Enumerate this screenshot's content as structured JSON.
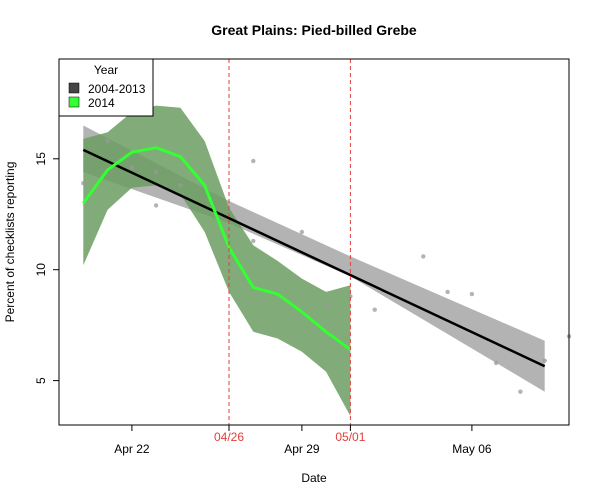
{
  "chart_data": {
    "type": "line",
    "title": "Great Plains: Pied-billed Grebe",
    "xlabel": "Date",
    "ylabel": "Percent of checklists reporting",
    "xlim": [
      "2014-04-19",
      "2014-05-10"
    ],
    "ylim": [
      3,
      19.5
    ],
    "x_ticks": [
      {
        "date": "2014-04-22",
        "label": "Apr 22"
      },
      {
        "date": "2014-04-29",
        "label": "Apr 29"
      },
      {
        "date": "2014-05-06",
        "label": "May 06"
      }
    ],
    "y_ticks": [
      5,
      10,
      15
    ],
    "reference_lines": [
      {
        "date": "2014-04-26",
        "label": "04/26",
        "color": "#e0403a"
      },
      {
        "date": "2014-05-01",
        "label": "05/01",
        "color": "#e0403a"
      }
    ],
    "legend": {
      "title": "Year",
      "placement": "top-left",
      "entries": [
        {
          "label": "2004-2013",
          "color": "#444444"
        },
        {
          "label": "2014",
          "color": "#33ff33"
        }
      ]
    },
    "series": [
      {
        "name": "2004-2013",
        "color": "#000000",
        "band_color": "#b3b3b3",
        "line": [
          {
            "x": "2014-04-20",
            "y": 15.4
          },
          {
            "x": "2014-05-09",
            "y": 5.65
          }
        ],
        "band": [
          {
            "x": "2014-04-20",
            "lower": 14.4,
            "upper": 16.5
          },
          {
            "x": "2014-04-26",
            "lower": 12.1,
            "upper": 13.1
          },
          {
            "x": "2014-05-01",
            "lower": 9.7,
            "upper": 10.6
          },
          {
            "x": "2014-05-09",
            "lower": 4.5,
            "upper": 6.8
          }
        ]
      },
      {
        "name": "2014",
        "color": "#33ff33",
        "band_color": "#6b9e62",
        "line": [
          {
            "x": "2014-04-20",
            "y": 13.0
          },
          {
            "x": "2014-04-21",
            "y": 14.5
          },
          {
            "x": "2014-04-22",
            "y": 15.3
          },
          {
            "x": "2014-04-23",
            "y": 15.5
          },
          {
            "x": "2014-04-24",
            "y": 15.1
          },
          {
            "x": "2014-04-25",
            "y": 13.8
          },
          {
            "x": "2014-04-26",
            "y": 11.0
          },
          {
            "x": "2014-04-27",
            "y": 9.2
          },
          {
            "x": "2014-04-28",
            "y": 8.9
          },
          {
            "x": "2014-04-29",
            "y": 8.1
          },
          {
            "x": "2014-04-30",
            "y": 7.2
          },
          {
            "x": "2014-05-01",
            "y": 6.4
          }
        ],
        "band": [
          {
            "x": "2014-04-20",
            "lower": 10.2,
            "upper": 15.9
          },
          {
            "x": "2014-04-21",
            "lower": 12.7,
            "upper": 16.2
          },
          {
            "x": "2014-04-22",
            "lower": 13.7,
            "upper": 17.1
          },
          {
            "x": "2014-04-23",
            "lower": 13.8,
            "upper": 17.4
          },
          {
            "x": "2014-04-24",
            "lower": 13.4,
            "upper": 17.3
          },
          {
            "x": "2014-04-25",
            "lower": 11.7,
            "upper": 15.8
          },
          {
            "x": "2014-04-26",
            "lower": 9.0,
            "upper": 12.8
          },
          {
            "x": "2014-04-27",
            "lower": 7.2,
            "upper": 11.1
          },
          {
            "x": "2014-04-28",
            "lower": 6.9,
            "upper": 10.4
          },
          {
            "x": "2014-04-29",
            "lower": 6.3,
            "upper": 9.6
          },
          {
            "x": "2014-04-30",
            "lower": 5.4,
            "upper": 9.0
          },
          {
            "x": "2014-05-01",
            "lower": 3.4,
            "upper": 9.3
          }
        ]
      }
    ],
    "scatter_points": [
      {
        "x": "2014-04-20",
        "y": 13.9
      },
      {
        "x": "2014-04-21",
        "y": 15.8
      },
      {
        "x": "2014-04-22",
        "y": 14.6
      },
      {
        "x": "2014-04-23",
        "y": 12.9
      },
      {
        "x": "2014-04-23",
        "y": 14.4
      },
      {
        "x": "2014-04-24",
        "y": 13.8
      },
      {
        "x": "2014-04-25",
        "y": 13.9
      },
      {
        "x": "2014-04-27",
        "y": 14.9
      },
      {
        "x": "2014-04-27",
        "y": 11.3
      },
      {
        "x": "2014-04-29",
        "y": 11.7
      },
      {
        "x": "2014-04-30",
        "y": 8.4
      },
      {
        "x": "2014-05-01",
        "y": 8.8
      },
      {
        "x": "2014-05-02",
        "y": 8.2
      },
      {
        "x": "2014-05-04",
        "y": 10.6
      },
      {
        "x": "2014-05-05",
        "y": 9.0
      },
      {
        "x": "2014-05-06",
        "y": 8.9
      },
      {
        "x": "2014-05-07",
        "y": 5.8
      },
      {
        "x": "2014-05-08",
        "y": 4.5
      },
      {
        "x": "2014-05-09",
        "y": 5.9
      },
      {
        "x": "2014-05-10",
        "y": 7.0
      }
    ],
    "grid": false
  }
}
